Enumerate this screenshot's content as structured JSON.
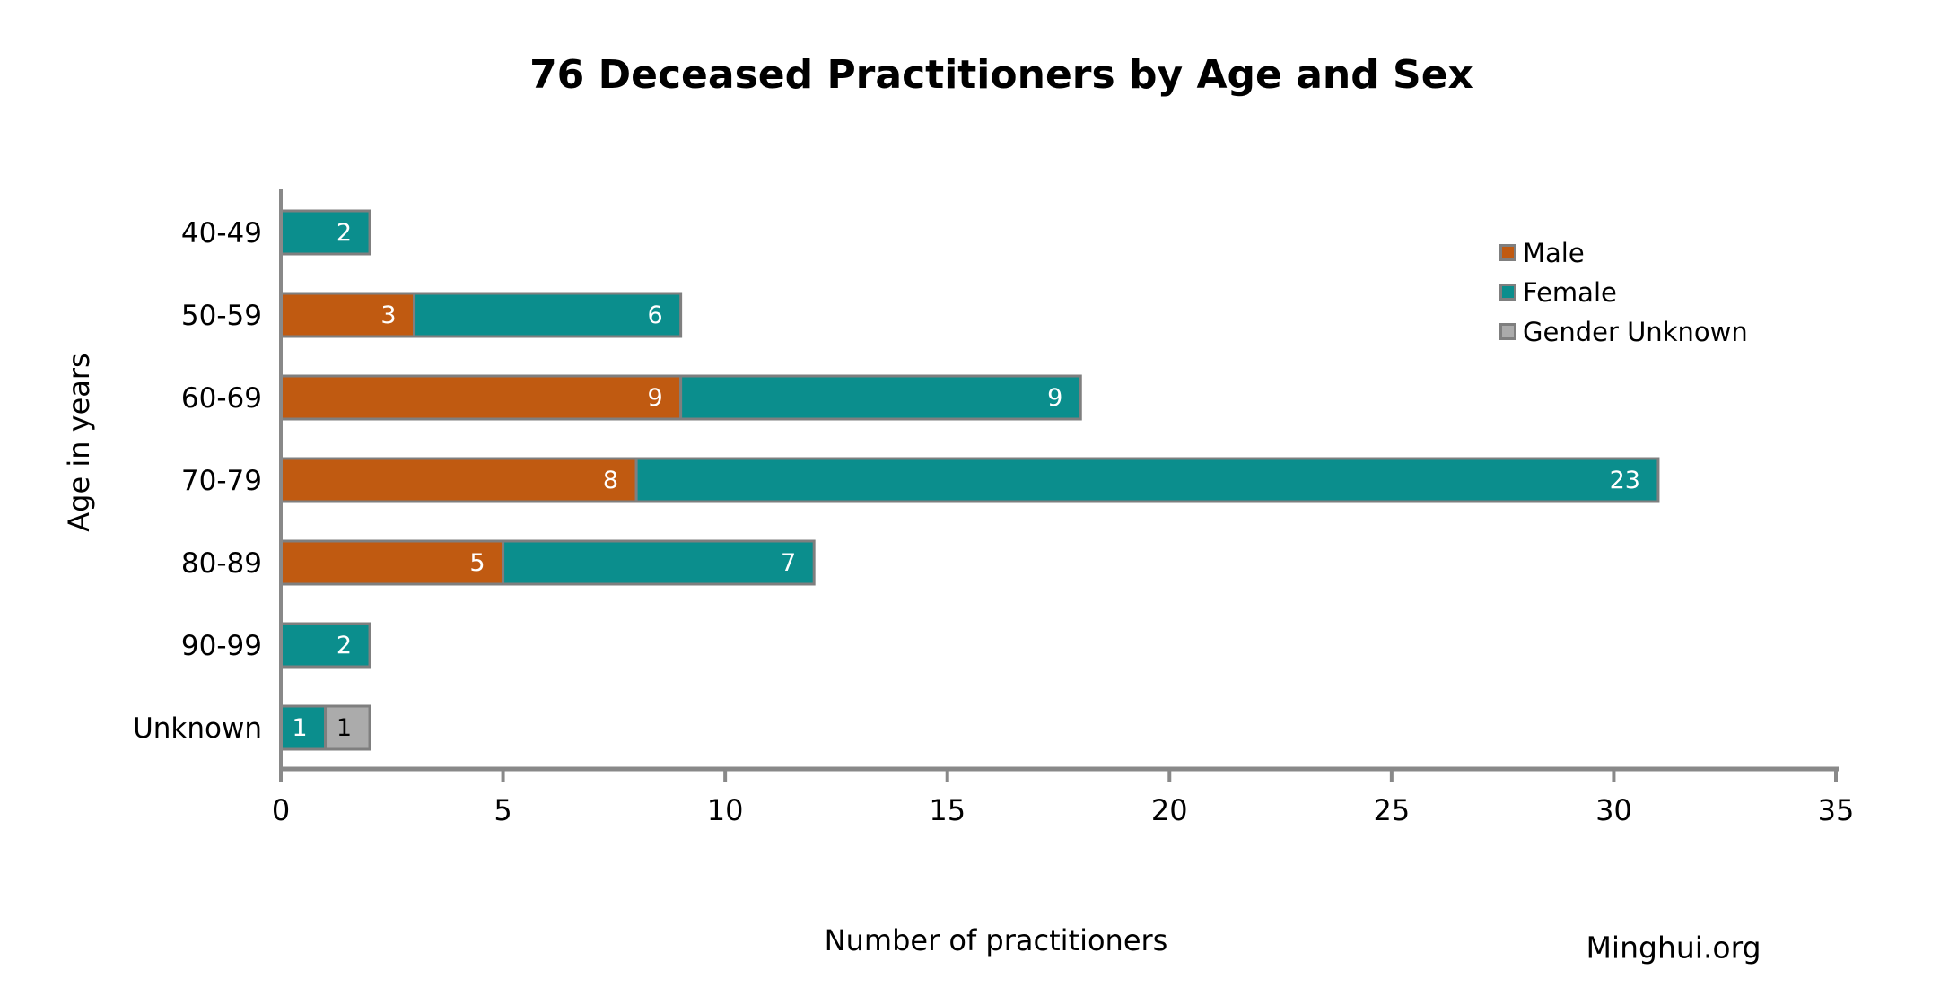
{
  "chart_data": {
    "type": "bar",
    "orientation": "horizontal",
    "stacked": true,
    "title": "76 Deceased Practitioners by Age and Sex",
    "xlabel": "Number of practitioners",
    "ylabel": "Age in years",
    "xlim": [
      0,
      35
    ],
    "xticks": [
      "0",
      "5",
      "10",
      "15",
      "20",
      "25",
      "30",
      "35"
    ],
    "xtick_values": [
      0,
      5,
      10,
      15,
      20,
      25,
      30,
      35
    ],
    "grid": false,
    "legend_position": "right",
    "categories": [
      "40-49",
      "50-59",
      "60-69",
      "70-79",
      "80-89",
      "90-99",
      "Unknown"
    ],
    "series": [
      {
        "name": "Male",
        "color": "#C05A11",
        "label_color": "#FFFFFF",
        "values": [
          0,
          3,
          9,
          8,
          5,
          0,
          0
        ]
      },
      {
        "name": "Female",
        "color": "#0B8E8D",
        "label_color": "#FFFFFF",
        "values": [
          2,
          6,
          9,
          23,
          7,
          2,
          1
        ]
      },
      {
        "name": "Gender Unknown",
        "color": "#ABABAB",
        "label_color": "#000000",
        "values": [
          0,
          0,
          0,
          0,
          0,
          0,
          1
        ]
      }
    ],
    "totals_by_category": [
      2,
      9,
      18,
      31,
      12,
      2,
      2
    ],
    "style": {
      "axis_color": "#898989",
      "bar_border_color": "#7F7F7F",
      "text_color": "#000000",
      "background": "#FFFFFF"
    }
  },
  "watermark": "Minghui.org"
}
